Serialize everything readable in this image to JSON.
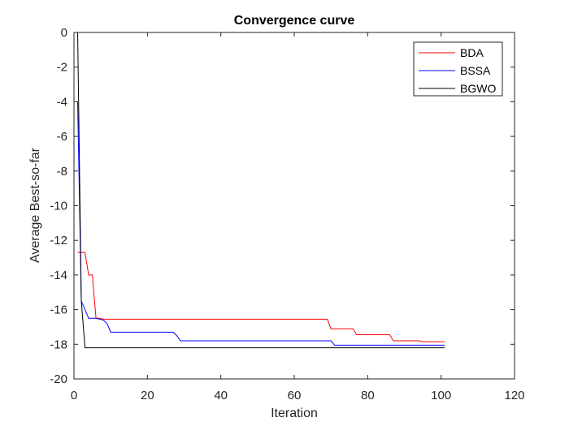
{
  "chart_data": {
    "type": "line",
    "title": "Convergence curve",
    "xlabel": "Iteration",
    "ylabel": "Average Best-so-far",
    "xlim": [
      0,
      120
    ],
    "ylim": [
      -20,
      0
    ],
    "xticks": [
      0,
      20,
      40,
      60,
      80,
      100,
      120
    ],
    "yticks": [
      0,
      -2,
      -4,
      -6,
      -8,
      -10,
      -12,
      -14,
      -16,
      -18,
      -20
    ],
    "grid": false,
    "legend_position": "top-right",
    "series": [
      {
        "name": "BDA",
        "color": "#ff0000",
        "x": [
          1,
          2,
          3,
          4,
          5,
          6,
          7,
          8,
          69,
          70,
          71,
          76,
          77,
          86,
          87,
          94,
          95,
          101
        ],
        "y": [
          -12.7,
          -12.7,
          -12.7,
          -14.0,
          -14.0,
          -16.5,
          -16.5,
          -16.55,
          -16.55,
          -17.1,
          -17.1,
          -17.1,
          -17.45,
          -17.45,
          -17.8,
          -17.8,
          -17.85,
          -17.85
        ]
      },
      {
        "name": "BSSA",
        "color": "#0000ff",
        "x": [
          1,
          2,
          3,
          4,
          6,
          7,
          8,
          9,
          10,
          27,
          28,
          29,
          70,
          71,
          101
        ],
        "y": [
          -4.0,
          -15.5,
          -16.0,
          -16.5,
          -16.5,
          -16.55,
          -16.6,
          -16.8,
          -17.3,
          -17.3,
          -17.5,
          -17.8,
          -17.8,
          -18.05,
          -18.05
        ]
      },
      {
        "name": "BGWO",
        "color": "#000000",
        "x": [
          1,
          2,
          3,
          101
        ],
        "y": [
          0,
          -15.5,
          -18.2,
          -18.2
        ]
      }
    ]
  }
}
